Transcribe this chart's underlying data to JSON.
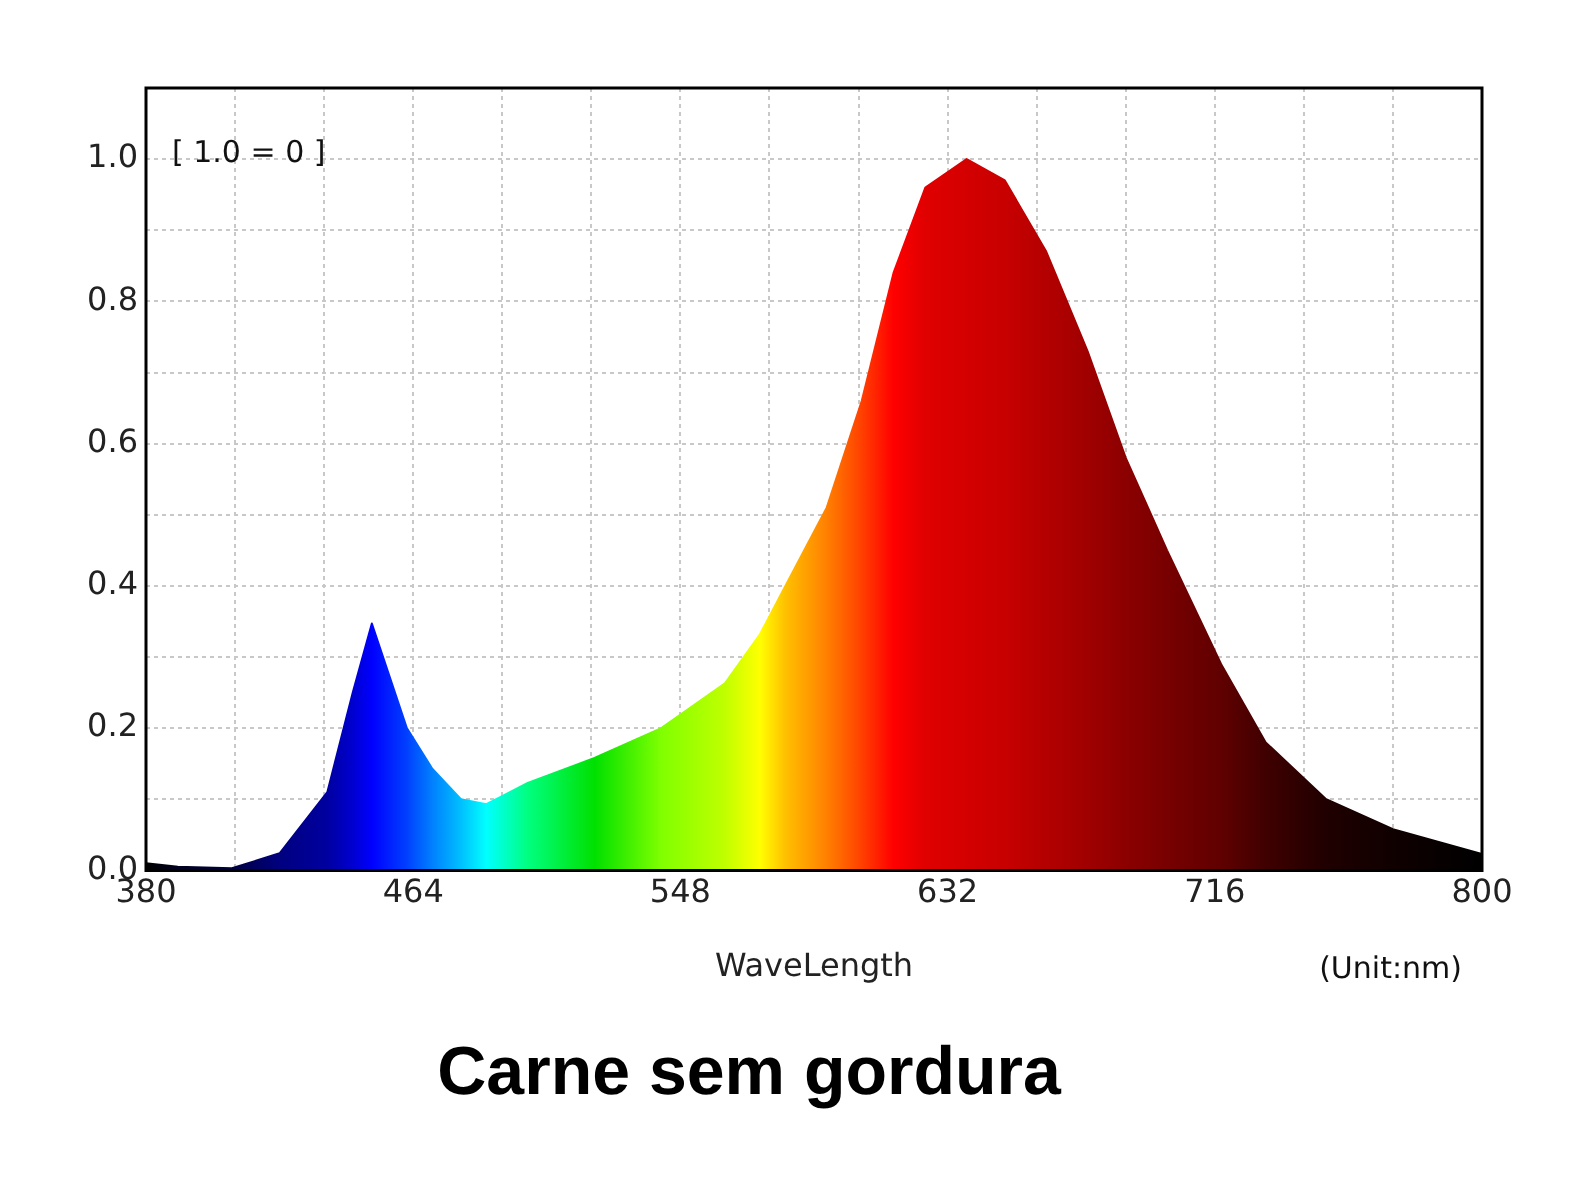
{
  "chart_data": {
    "type": "area",
    "title": "Carne sem gordura",
    "xlabel": "WaveLength",
    "annotations": [
      "[ 1.0 = 0 ]",
      "(Unit:nm)"
    ],
    "x": [
      380,
      390,
      407,
      422,
      437,
      445,
      451,
      462,
      470,
      479,
      487,
      500,
      521,
      542,
      562,
      573,
      581,
      594,
      605,
      615,
      625,
      638,
      650,
      663,
      676,
      688,
      701,
      718,
      732,
      751,
      772,
      800
    ],
    "series": [
      {
        "values": [
          0.01,
          0.005,
          0.003,
          0.024,
          0.11,
          0.25,
          0.347,
          0.2,
          0.143,
          0.1,
          0.093,
          0.123,
          0.158,
          0.2,
          0.263,
          0.332,
          0.4,
          0.51,
          0.66,
          0.84,
          0.96,
          1.0,
          0.97,
          0.87,
          0.73,
          0.58,
          0.45,
          0.29,
          0.18,
          0.1,
          0.058,
          0.023
        ],
        "colors": [
          "#000000",
          "#000020",
          "#000040",
          "#000080",
          "#0000a0",
          "#0000d0",
          "#0000ff",
          "#0040ff",
          "#0080ff",
          "#00c0ff",
          "#00ffff",
          "#00ff80",
          "#00e000",
          "#80ff00",
          "#c0ff00",
          "#ffff00",
          "#ffc000",
          "#ff8000",
          "#ff4000",
          "#ff0000",
          "#e00000",
          "#d40000",
          "#c80000",
          "#b40000",
          "#a00000",
          "#8c0000",
          "#780000",
          "#600000",
          "#400000",
          "#200000",
          "#100000",
          "#000000"
        ]
      }
    ],
    "xlim": [
      380,
      800
    ],
    "xticks": [
      380,
      {
        "value": 408,
        "label": null
      },
      {
        "value": 436,
        "label": null
      },
      464,
      {
        "value": 492,
        "label": null
      },
      {
        "value": 520,
        "label": null
      },
      548,
      {
        "value": 576,
        "label": null
      },
      {
        "value": 604,
        "label": null
      },
      632,
      {
        "value": 660,
        "label": null
      },
      {
        "value": 688,
        "label": null
      },
      716,
      {
        "value": 744,
        "label": null
      },
      {
        "value": 772,
        "label": null
      },
      800
    ],
    "ylim": [
      0,
      1.1
    ],
    "yticks": [
      {
        "value": 0,
        "label": "0.0"
      },
      {
        "value": 0.1,
        "label": null
      },
      {
        "value": 0.2,
        "label": "0.2"
      },
      {
        "value": 0.3,
        "label": null
      },
      {
        "value": 0.4,
        "label": "0.4"
      },
      {
        "value": 0.5,
        "label": null
      },
      {
        "value": 0.6,
        "label": "0.6"
      },
      {
        "value": 0.7,
        "label": null
      },
      {
        "value": 0.8,
        "label": "0.8"
      },
      {
        "value": 0.9,
        "label": null
      },
      {
        "value": 1,
        "label": "1.0"
      }
    ],
    "grid": true,
    "legend": false,
    "marker": "none"
  }
}
